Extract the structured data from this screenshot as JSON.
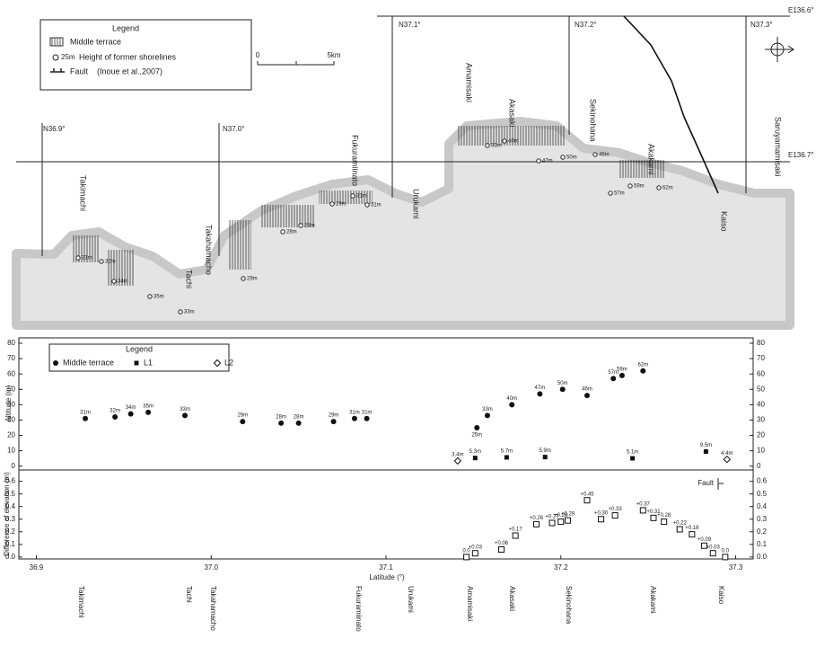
{
  "map": {
    "legend": {
      "title": "Legend",
      "items": [
        "Middle terrace",
        "25m",
        "Height of former shorelines",
        "Fault",
        "(Inoue et al.,2007)"
      ]
    },
    "scale": [
      "0",
      "5km"
    ],
    "grid_labels": [
      "N36.9°",
      "N37.0°",
      "N37.1°",
      "N37.2°",
      "N37.3°",
      "E136.6°",
      "E136.7°"
    ],
    "place_names": [
      "Takimachi",
      "Takahamacho",
      "Tachi",
      "Fukuramiinato",
      "Urukami",
      "Amamisaki",
      "Akasaki",
      "Sekinohana",
      "Akakami",
      "Kaiso",
      "Saruyamamisaki"
    ],
    "heights": [
      "31m",
      "32m",
      "34m",
      "35m",
      "33m",
      "29m",
      "28m",
      "28m",
      "29m",
      "31m",
      "31m",
      "33m",
      "40m",
      "47m",
      "50m",
      "46m",
      "57m",
      "59m",
      "62m"
    ]
  },
  "chart_data": [
    {
      "type": "scatter",
      "ylabel": "Altitude (m)",
      "legend_title": "Legend",
      "xlim": [
        36.89,
        37.31
      ],
      "ylim": [
        -2.5,
        83.5
      ],
      "yticks": [
        0,
        10,
        20,
        30,
        40,
        50,
        60,
        70,
        80
      ],
      "series": [
        {
          "name": "Middle terrace",
          "marker": "circle",
          "color": "#111",
          "x": [
            36.928,
            36.945,
            36.954,
            36.964,
            36.985,
            37.018,
            37.04,
            37.05,
            37.07,
            37.082,
            37.089,
            37.152,
            37.158,
            37.172,
            37.188,
            37.201,
            37.215,
            37.23,
            37.235,
            37.247
          ],
          "values": [
            31,
            32,
            34,
            35,
            33,
            29,
            28,
            28,
            29,
            31,
            31,
            25,
            33,
            40,
            47,
            50,
            46,
            57,
            59,
            62
          ],
          "value_labels": [
            "31m",
            "32m",
            "34m",
            "35m",
            "33m",
            "29m",
            "28m",
            "28m",
            "29m",
            "31m",
            "31m",
            "25m",
            "33m",
            "40m",
            "47m",
            "50m",
            "46m",
            "57m",
            "59m",
            "62m"
          ]
        },
        {
          "name": "L1",
          "marker": "square",
          "color": "#111",
          "x": [
            37.151,
            37.169,
            37.191,
            37.241,
            37.283
          ],
          "values": [
            5.3,
            5.7,
            5.9,
            5.1,
            9.5
          ],
          "value_labels": [
            "5.3m",
            "5.7m",
            "5.9m",
            "5.1m",
            "9.5m"
          ]
        },
        {
          "name": "L2",
          "marker": "diamond",
          "color": "#111",
          "x": [
            37.141,
            37.295
          ],
          "values": [
            3.4,
            4.4
          ],
          "value_labels": [
            "3.4m",
            "4.4m"
          ]
        }
      ]
    },
    {
      "type": "scatter",
      "ylabel": "Difference of elevation (m)",
      "xlabel": "Latitude (°)",
      "legend_label": "Fault",
      "xlim": [
        36.89,
        37.31
      ],
      "ylim": [
        -0.015,
        0.69
      ],
      "xticks": [
        36.9,
        {
          "value": 37,
          "label": "37.0"
        },
        37.1,
        37.2,
        37.3
      ],
      "yticks": [
        {
          "value": 0,
          "label": "0.0"
        },
        0.1,
        0.2,
        0.3,
        0.4,
        0.5,
        0.6
      ],
      "series": [
        {
          "marker": "open-square",
          "color": "#111",
          "x": [
            37.146,
            37.151,
            37.166,
            37.174,
            37.186,
            37.195,
            37.2,
            37.204,
            37.215,
            37.223,
            37.231,
            37.247,
            37.253,
            37.259,
            37.268,
            37.275,
            37.282,
            37.287,
            37.294
          ],
          "values": [
            0,
            0.03,
            0.06,
            0.17,
            0.26,
            0.27,
            0.28,
            0.29,
            0.45,
            0.3,
            0.33,
            0.37,
            0.31,
            0.28,
            0.22,
            0.18,
            0.09,
            0.03,
            0
          ],
          "value_labels": [
            "0.0",
            "+0.03",
            "+0.06",
            "+0.17",
            "+0.26",
            "+0.27",
            "+0.28",
            "+0.29",
            "+0.45",
            "+0.30",
            "+0.33",
            "+0.37",
            "+0.31",
            "+0.28",
            "+0.22",
            "+0.18",
            "+0.09",
            "+0.03",
            "0.0"
          ]
        }
      ]
    }
  ],
  "place_names": [
    "Takimachi",
    "Tachi",
    "Takahamacho",
    "Fukuramiinato",
    "Urukami",
    "Amamisaki",
    "Akasaki",
    "Sekinohana",
    "Akakami",
    "Kaiso"
  ]
}
